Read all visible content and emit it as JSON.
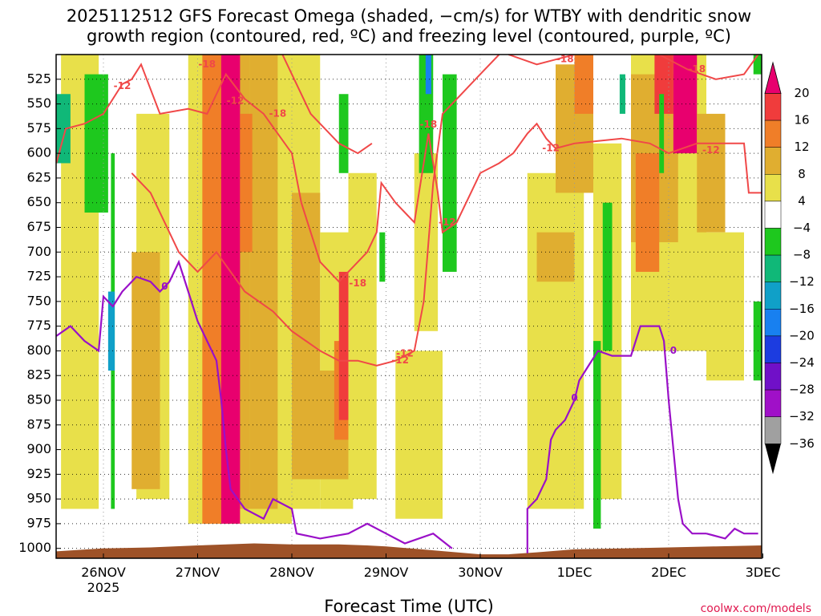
{
  "chart_data": {
    "type": "heatmap",
    "title_line1": "2025112512 GFS Forecast Omega (shaded, −cm/s) for WTBY with dendritic snow",
    "title_line2": "growth region (contoured, red, ºC) and freezing level (contoured, purple, ºC)",
    "xlabel": "Forecast Time (UTC)",
    "credit": "coolwx.com/models",
    "x_ticks": [
      "26NOV",
      "27NOV",
      "28NOV",
      "29NOV",
      "30NOV",
      "1DEC",
      "2DEC",
      "3DEC"
    ],
    "x_year_label": "2025",
    "x_range_days": [
      -0.5,
      7.0
    ],
    "y_ticks": [
      525,
      550,
      575,
      600,
      625,
      650,
      675,
      700,
      725,
      750,
      775,
      800,
      825,
      850,
      875,
      900,
      925,
      950,
      975,
      1000
    ],
    "y_range_hpa": [
      500,
      1010
    ],
    "colorbar": {
      "labels": [
        "20",
        "16",
        "12",
        "8",
        "4",
        "−4",
        "−8",
        "−12",
        "−16",
        "−20",
        "−24",
        "−28",
        "−32",
        "−36"
      ],
      "colors_top_to_bottom": [
        "#e8006e",
        "#f03c3c",
        "#f07e28",
        "#e0ae30",
        "#e8e04a",
        "#ffffff",
        "#1ec81e",
        "#10b878",
        "#10a0c8",
        "#1880f0",
        "#1c3ce0",
        "#7010c8",
        "#a010c8",
        "#a0a0a0"
      ],
      "top_arrow": "#e8006e",
      "bottom_arrow": "#000000"
    },
    "colors": {
      "dgz_contour": "#f04848",
      "freezing_contour": "#9a10c8",
      "terrain": "#9e5228"
    },
    "dgz_contour_labels": [
      "-12",
      "-12",
      "-12",
      "-12",
      "-12",
      "-12",
      "-12",
      "-18",
      "-18",
      "-18",
      "-18",
      "-18",
      "-18"
    ],
    "freezing_contour_labels": [
      "0",
      "0",
      "0"
    ],
    "omega_regions": [
      {
        "x0": -0.45,
        "x1": -0.05,
        "p0": 500,
        "p1": 960,
        "v": 5
      },
      {
        "x0": 0.35,
        "x1": 0.7,
        "p0": 560,
        "p1": 950,
        "v": 5
      },
      {
        "x0": 0.3,
        "x1": 0.6,
        "p0": 700,
        "p1": 940,
        "v": 9
      },
      {
        "x0": 0.9,
        "x1": 2.0,
        "p0": 500,
        "p1": 975,
        "v": 5
      },
      {
        "x0": 1.2,
        "x1": 1.55,
        "p0": 500,
        "p1": 960,
        "v": 10
      },
      {
        "x0": 1.55,
        "x1": 1.85,
        "p0": 500,
        "p1": 960,
        "v": 9
      },
      {
        "x0": 1.05,
        "x1": 1.25,
        "p0": 500,
        "p1": 975,
        "v": 14
      },
      {
        "x0": 1.25,
        "x1": 1.45,
        "p0": 500,
        "p1": 975,
        "v": 21
      },
      {
        "x0": 1.45,
        "x1": 1.58,
        "p0": 560,
        "p1": 700,
        "v": 14
      },
      {
        "x0": 2.0,
        "x1": 2.3,
        "p0": 500,
        "p1": 960,
        "v": 5
      },
      {
        "x0": 2.0,
        "x1": 2.3,
        "p0": 640,
        "p1": 930,
        "v": 9
      },
      {
        "x0": 2.3,
        "x1": 2.65,
        "p0": 680,
        "p1": 960,
        "v": 6
      },
      {
        "x0": 2.2,
        "x1": 2.75,
        "p0": 820,
        "p1": 930,
        "v": 10
      },
      {
        "x0": 2.45,
        "x1": 2.6,
        "p0": 790,
        "p1": 890,
        "v": 14
      },
      {
        "x0": 2.5,
        "x1": 2.62,
        "p0": 720,
        "p1": 870,
        "v": 17
      },
      {
        "x0": 2.6,
        "x1": 2.9,
        "p0": 620,
        "p1": 950,
        "v": 5
      },
      {
        "x0": 3.1,
        "x1": 3.6,
        "p0": 800,
        "p1": 970,
        "v": 5
      },
      {
        "x0": 3.3,
        "x1": 3.55,
        "p0": 600,
        "p1": 780,
        "v": 5
      },
      {
        "x0": 4.5,
        "x1": 5.1,
        "p0": 620,
        "p1": 960,
        "v": 5
      },
      {
        "x0": 4.6,
        "x1": 5.0,
        "p0": 680,
        "p1": 730,
        "v": 9
      },
      {
        "x0": 4.8,
        "x1": 5.2,
        "p0": 510,
        "p1": 640,
        "v": 10
      },
      {
        "x0": 5.0,
        "x1": 5.2,
        "p0": 500,
        "p1": 560,
        "v": 14
      },
      {
        "x0": 5.2,
        "x1": 5.5,
        "p0": 590,
        "p1": 950,
        "v": 5
      },
      {
        "x0": 5.6,
        "x1": 6.4,
        "p0": 500,
        "p1": 800,
        "v": 5
      },
      {
        "x0": 5.6,
        "x1": 6.1,
        "p0": 520,
        "p1": 690,
        "v": 10
      },
      {
        "x0": 5.65,
        "x1": 5.9,
        "p0": 600,
        "p1": 720,
        "v": 13
      },
      {
        "x0": 5.85,
        "x1": 6.05,
        "p0": 500,
        "p1": 560,
        "v": 18
      },
      {
        "x0": 6.05,
        "x1": 6.3,
        "p0": 500,
        "p1": 600,
        "v": 21
      },
      {
        "x0": 6.3,
        "x1": 6.6,
        "p0": 560,
        "p1": 680,
        "v": 10
      },
      {
        "x0": 6.4,
        "x1": 6.8,
        "p0": 680,
        "p1": 830,
        "v": 5
      },
      {
        "x0": -0.5,
        "x1": -0.35,
        "p0": 540,
        "p1": 610,
        "v": -10
      },
      {
        "x0": -0.2,
        "x1": 0.05,
        "p0": 520,
        "p1": 660,
        "v": -7
      },
      {
        "x0": 0.08,
        "x1": 0.12,
        "p0": 600,
        "p1": 960,
        "v": -7
      },
      {
        "x0": 0.05,
        "x1": 0.12,
        "p0": 740,
        "p1": 820,
        "v": -13
      },
      {
        "x0": 3.35,
        "x1": 3.5,
        "p0": 500,
        "p1": 620,
        "v": -7
      },
      {
        "x0": 3.42,
        "x1": 3.48,
        "p0": 500,
        "p1": 540,
        "v": -16
      },
      {
        "x0": 3.6,
        "x1": 3.75,
        "p0": 520,
        "p1": 720,
        "v": -7
      },
      {
        "x0": 2.5,
        "x1": 2.6,
        "p0": 540,
        "p1": 620,
        "v": -7
      },
      {
        "x0": 2.93,
        "x1": 2.99,
        "p0": 680,
        "p1": 730,
        "v": -7
      },
      {
        "x0": 5.2,
        "x1": 5.28,
        "p0": 790,
        "p1": 980,
        "v": -7
      },
      {
        "x0": 5.3,
        "x1": 5.4,
        "p0": 650,
        "p1": 800,
        "v": -7
      },
      {
        "x0": 5.48,
        "x1": 5.54,
        "p0": 520,
        "p1": 560,
        "v": -10
      },
      {
        "x0": 5.9,
        "x1": 5.95,
        "p0": 540,
        "p1": 620,
        "v": -7
      },
      {
        "x0": 6.9,
        "x1": 7.0,
        "p0": 500,
        "p1": 520,
        "v": -7
      },
      {
        "x0": 6.9,
        "x1": 7.0,
        "p0": 750,
        "p1": 830,
        "v": -7
      }
    ],
    "dgz_contours": [
      [
        [
          -0.5,
          610
        ],
        [
          -0.4,
          575
        ],
        [
          -0.2,
          570
        ],
        [
          0.0,
          560
        ],
        [
          0.2,
          530
        ],
        [
          0.3,
          525
        ],
        [
          0.4,
          510
        ],
        [
          0.6,
          560
        ],
        [
          0.9,
          555
        ],
        [
          1.1,
          560
        ],
        [
          1.3,
          520
        ],
        [
          1.5,
          545
        ],
        [
          1.7,
          560
        ],
        [
          2.0,
          600
        ],
        [
          2.1,
          650
        ],
        [
          2.3,
          710
        ],
        [
          2.5,
          730
        ],
        [
          2.6,
          720
        ],
        [
          2.8,
          700
        ],
        [
          2.9,
          680
        ],
        [
          2.95,
          630
        ],
        [
          3.1,
          650
        ],
        [
          3.3,
          670
        ],
        [
          3.35,
          640
        ],
        [
          3.45,
          580
        ],
        [
          3.55,
          640
        ],
        [
          3.6,
          680
        ],
        [
          3.75,
          670
        ],
        [
          3.9,
          640
        ],
        [
          4.0,
          620
        ],
        [
          4.2,
          610
        ],
        [
          4.35,
          600
        ],
        [
          4.5,
          580
        ],
        [
          4.6,
          570
        ],
        [
          4.7,
          585
        ],
        [
          4.8,
          595
        ],
        [
          5.0,
          590
        ],
        [
          5.2,
          588
        ],
        [
          5.5,
          585
        ],
        [
          5.8,
          590
        ],
        [
          6.0,
          600
        ],
        [
          6.3,
          590
        ],
        [
          6.6,
          590
        ],
        [
          6.8,
          590
        ],
        [
          6.85,
          640
        ],
        [
          7.0,
          640
        ]
      ],
      [
        [
          0.3,
          620
        ],
        [
          0.5,
          640
        ],
        [
          0.8,
          700
        ],
        [
          1.0,
          720
        ],
        [
          1.2,
          700
        ],
        [
          1.5,
          740
        ],
        [
          1.8,
          760
        ],
        [
          2.0,
          780
        ],
        [
          2.3,
          800
        ],
        [
          2.5,
          810
        ],
        [
          2.7,
          810
        ],
        [
          2.9,
          815
        ],
        [
          3.1,
          810
        ],
        [
          3.3,
          800
        ],
        [
          3.4,
          750
        ],
        [
          3.45,
          690
        ],
        [
          3.5,
          630
        ],
        [
          3.6,
          560
        ],
        [
          3.8,
          540
        ],
        [
          4.0,
          520
        ],
        [
          4.2,
          500
        ]
      ],
      [
        [
          1.9,
          500
        ],
        [
          2.0,
          520
        ],
        [
          2.2,
          560
        ],
        [
          2.5,
          590
        ],
        [
          2.7,
          600
        ],
        [
          2.85,
          590
        ]
      ],
      [
        [
          4.3,
          500
        ],
        [
          4.6,
          510
        ],
        [
          4.8,
          505
        ],
        [
          5.0,
          500
        ]
      ],
      [
        [
          5.9,
          500
        ],
        [
          6.2,
          515
        ],
        [
          6.5,
          525
        ],
        [
          6.8,
          520
        ],
        [
          6.95,
          500
        ]
      ]
    ],
    "freezing_contours": [
      [
        [
          -0.5,
          785
        ],
        [
          -0.35,
          775
        ],
        [
          -0.2,
          790
        ],
        [
          -0.05,
          800
        ],
        [
          0.0,
          745
        ],
        [
          0.1,
          755
        ],
        [
          0.2,
          740
        ],
        [
          0.35,
          725
        ],
        [
          0.5,
          730
        ],
        [
          0.6,
          740
        ],
        [
          0.7,
          730
        ],
        [
          0.8,
          710
        ],
        [
          0.9,
          740
        ],
        [
          1.0,
          770
        ],
        [
          1.1,
          790
        ],
        [
          1.2,
          810
        ],
        [
          1.25,
          850
        ],
        [
          1.3,
          900
        ],
        [
          1.35,
          940
        ],
        [
          1.5,
          960
        ],
        [
          1.7,
          970
        ],
        [
          1.8,
          950
        ],
        [
          2.0,
          960
        ],
        [
          2.05,
          985
        ],
        [
          2.3,
          990
        ],
        [
          2.6,
          985
        ],
        [
          2.8,
          975
        ],
        [
          3.0,
          985
        ],
        [
          3.2,
          995
        ],
        [
          3.5,
          985
        ],
        [
          3.7,
          1000
        ]
      ],
      [
        [
          4.5,
          1005
        ],
        [
          4.5,
          960
        ],
        [
          4.6,
          950
        ],
        [
          4.7,
          930
        ],
        [
          4.75,
          890
        ],
        [
          4.8,
          880
        ],
        [
          4.9,
          870
        ],
        [
          5.0,
          850
        ],
        [
          5.05,
          830
        ],
        [
          5.15,
          815
        ],
        [
          5.25,
          800
        ],
        [
          5.4,
          805
        ],
        [
          5.6,
          805
        ],
        [
          5.7,
          775
        ],
        [
          5.9,
          775
        ],
        [
          5.95,
          790
        ],
        [
          6.0,
          850
        ],
        [
          6.05,
          900
        ],
        [
          6.1,
          950
        ],
        [
          6.15,
          975
        ],
        [
          6.25,
          985
        ],
        [
          6.4,
          985
        ]
      ],
      [
        [
          6.4,
          985
        ],
        [
          6.6,
          990
        ],
        [
          6.7,
          980
        ],
        [
          6.8,
          985
        ],
        [
          6.95,
          985
        ]
      ]
    ],
    "terrain_top_hpa": [
      [
        -0.5,
        1003
      ],
      [
        0.0,
        1000
      ],
      [
        0.5,
        999
      ],
      [
        1.0,
        997
      ],
      [
        1.3,
        996
      ],
      [
        1.6,
        995
      ],
      [
        2.0,
        996
      ],
      [
        2.5,
        996
      ],
      [
        2.8,
        997
      ],
      [
        3.0,
        998
      ],
      [
        3.5,
        1002
      ],
      [
        4.0,
        1006
      ],
      [
        4.3,
        1006
      ],
      [
        4.6,
        1004
      ],
      [
        5.0,
        1001
      ],
      [
        5.5,
        1000
      ],
      [
        6.0,
        999
      ],
      [
        6.5,
        998
      ],
      [
        7.0,
        997
      ]
    ]
  }
}
